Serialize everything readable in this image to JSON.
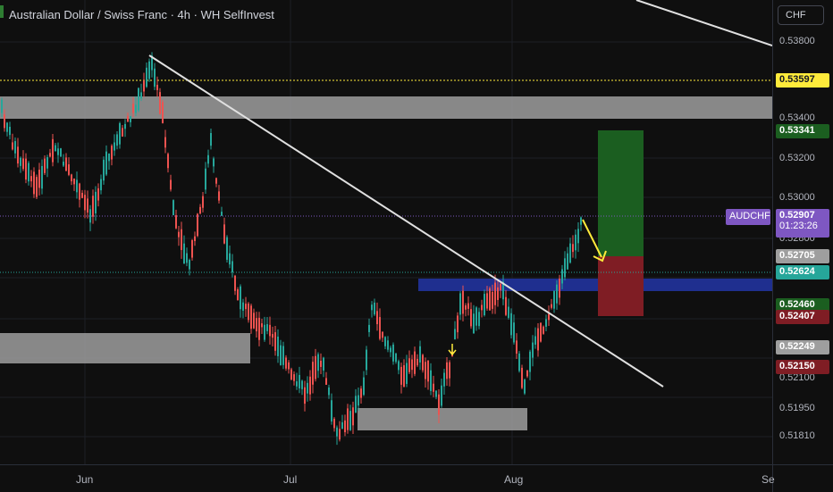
{
  "header": {
    "title": "Australian Dollar / Swiss Franc · 4h · WH SelfInvest",
    "currency_button": "CHF"
  },
  "price_axis": {
    "ticks": [
      "0.53800",
      "0.53400",
      "0.53200",
      "0.53000",
      "0.52800",
      "0.52100",
      "0.51950",
      "0.51810"
    ]
  },
  "price_labels": {
    "yellow_level": "0.53597",
    "target": "0.53341",
    "symbol": "AUDCHF",
    "current_price": "0.52907",
    "countdown": "01:23:26",
    "entry": "0.52705",
    "green_level": "0.52624",
    "level_52460": "0.52460",
    "stop": "0.52407",
    "level_52249": "0.52249",
    "level_52150": "0.52150"
  },
  "time_axis": {
    "labels": [
      "Jun",
      "Jul",
      "Aug",
      "Se"
    ]
  },
  "colors": {
    "background": "#0f0f0f",
    "candle_up": "#26a69a",
    "candle_down": "#ef5350",
    "zone_grey": "#9e9e9e",
    "zone_blue": "#1f2f8f",
    "profit_zone": "#1b5e20",
    "loss_zone": "#7f1d24",
    "trendline": "#e0e0e0",
    "arrow": "#ffeb3b",
    "symbol_tag": "#7e57c2"
  },
  "icons": {
    "title_marker": "green-flag-icon",
    "down_arrow": "down-arrow-icon"
  }
}
